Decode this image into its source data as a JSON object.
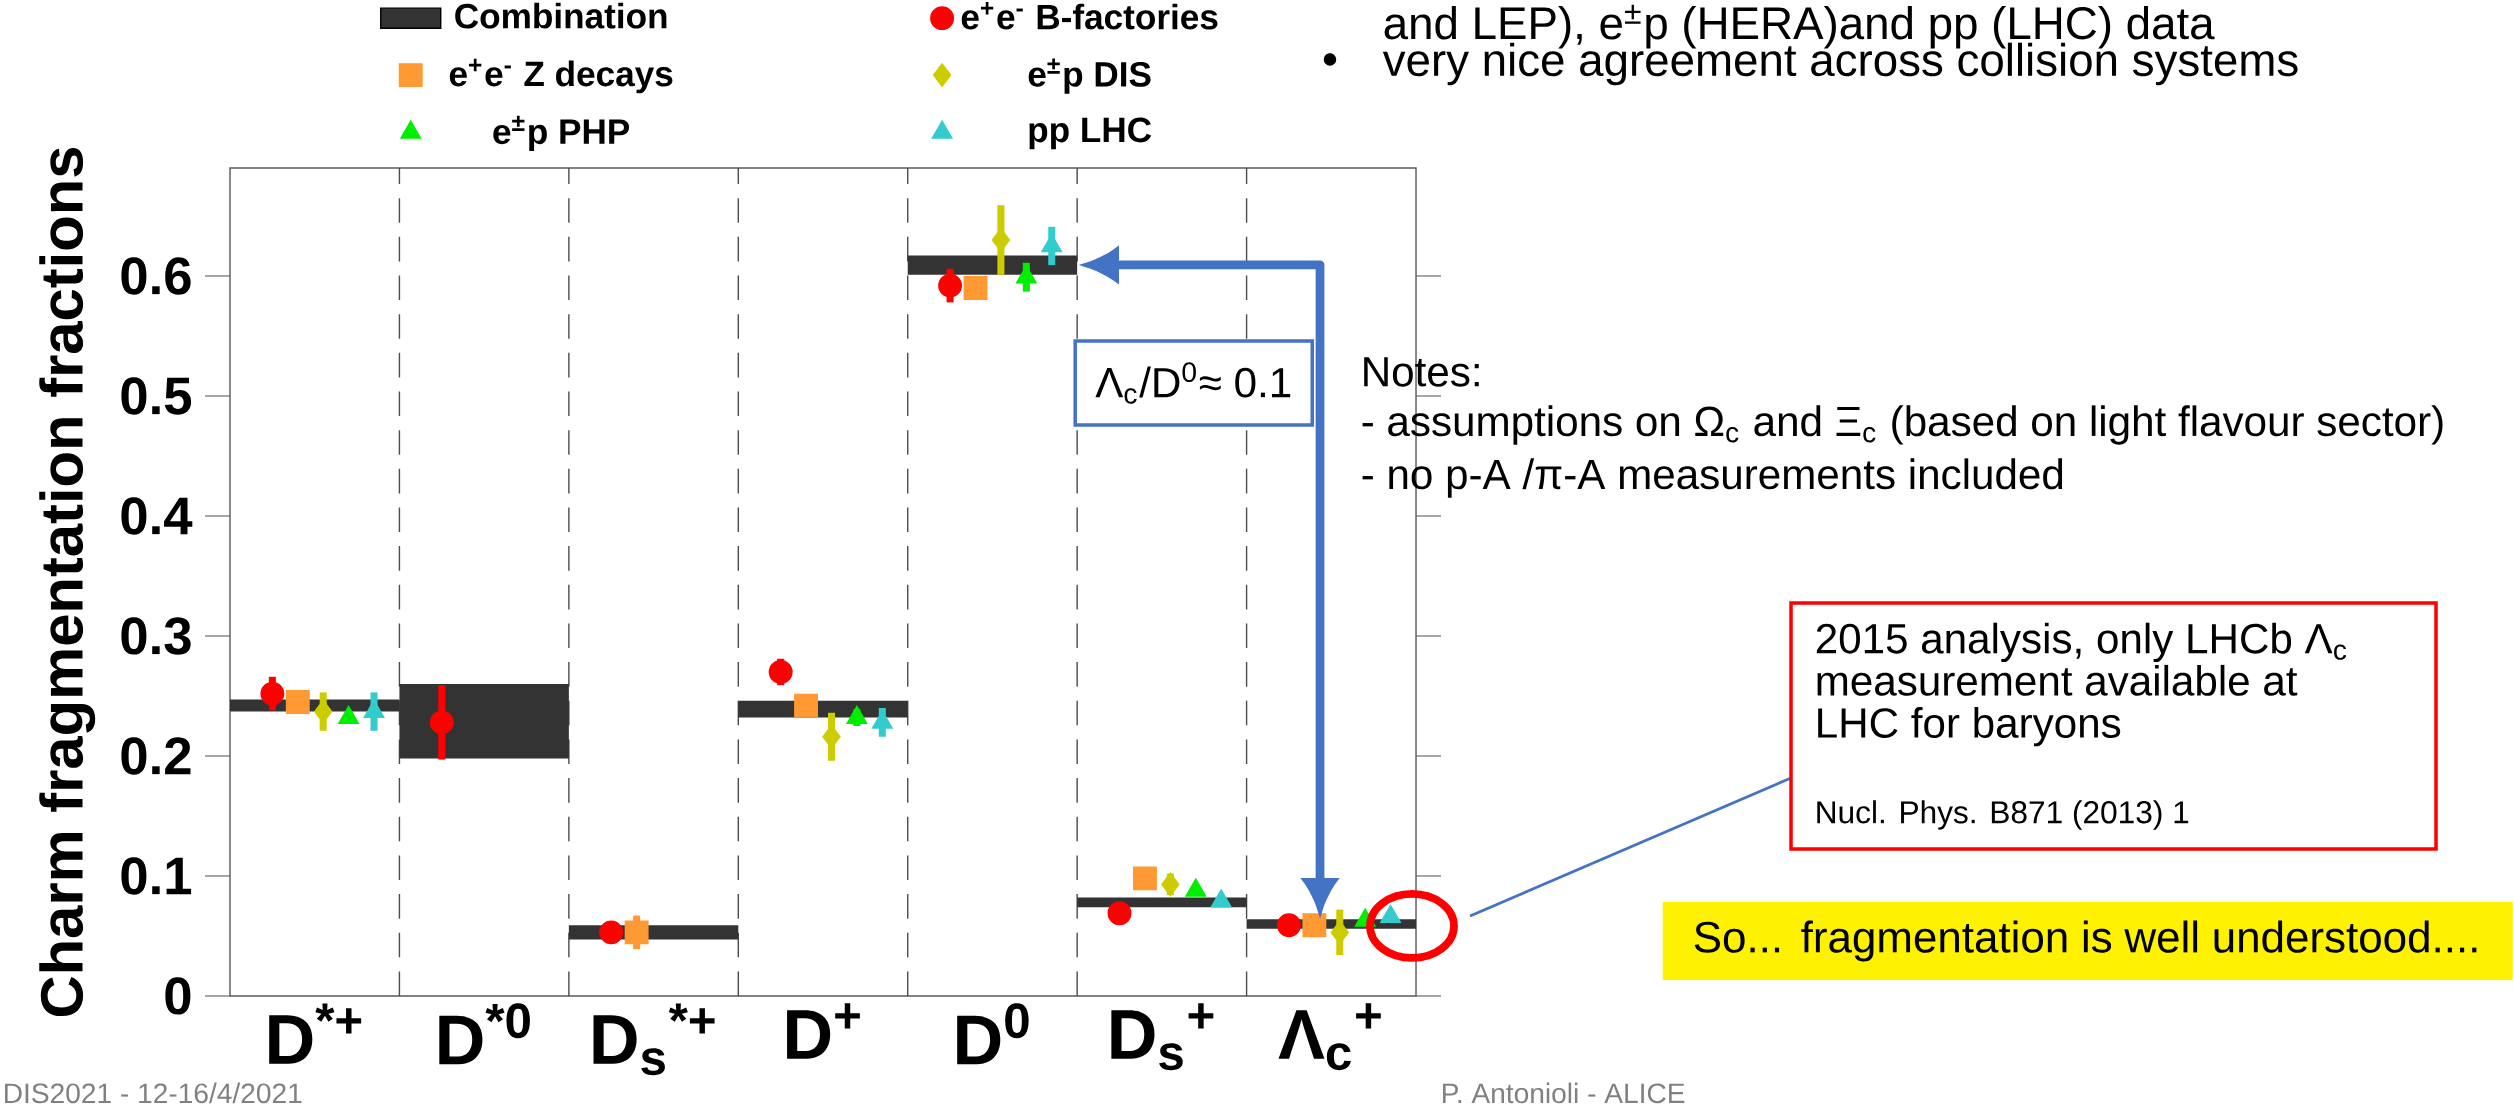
{
  "chart_data": {
    "type": "scatter",
    "ylabel": "Charm fragmentation fractions",
    "categories": [
      "D$^{*+}$",
      "D$^{*0}$",
      "D$_{s}$$^{*+}$",
      "D$^{+}$",
      "D$^{0}$",
      "D$_{s}$$^{+}$",
      "Λ$_{c}$$^{+}$"
    ],
    "ylim": [
      0,
      0.69
    ],
    "yticks": [
      0,
      0.1,
      0.2,
      0.3,
      0.4,
      0.5,
      0.6
    ],
    "legend": "top",
    "series": [
      {
        "name": "Combination",
        "type": "bar",
        "color": "#333333",
        "base": [
          0.237,
          0.198,
          0.047,
          0.232,
          0.601,
          0.074,
          0.056
        ],
        "values": [
          0.01,
          0.062,
          0.012,
          0.014,
          0.016,
          0.008,
          0.008
        ]
      },
      {
        "name": "e$^{+}$e$^{-}$ B-factories",
        "marker": "circle",
        "color": "#ff0000",
        "values": [
          0.252,
          0.228,
          0.053,
          0.27,
          0.592,
          0.069,
          0.059
        ],
        "errors": [
          0.014,
          0.031,
          null,
          0.011,
          0.014,
          null,
          null
        ]
      },
      {
        "name": "e$^{+}$e$^{-}$ Z decays",
        "marker": "square",
        "color": "#ff9933",
        "values": [
          0.245,
          null,
          0.053,
          0.242,
          0.59,
          0.098,
          0.059
        ],
        "errors": [
          0.005,
          null,
          0.014,
          0.006,
          0.01,
          null,
          null
        ]
      },
      {
        "name": "e$^{±}$p DIS",
        "marker": "diamond",
        "color": "#cccc00",
        "values": [
          0.237,
          null,
          null,
          0.216,
          0.63,
          0.093,
          0.053
        ],
        "errors": [
          0.016,
          null,
          null,
          0.02,
          0.029,
          0.009,
          0.019
        ]
      },
      {
        "name": "e$^{±}$p PHP",
        "marker": "triangle",
        "color": "#00ee00",
        "values": [
          0.232,
          null,
          null,
          0.232,
          0.599,
          0.088,
          0.063
        ],
        "errors": [
          null,
          null,
          null,
          0.007,
          0.012,
          null,
          null
        ]
      },
      {
        "name": "pp LHC",
        "marker": "triangle",
        "color": "#33cccc",
        "values": [
          0.237,
          null,
          null,
          0.228,
          0.625,
          0.079,
          0.066
        ],
        "errors": [
          0.016,
          null,
          null,
          0.012,
          0.016,
          null,
          null
        ]
      }
    ],
    "annotations": [
      "and LEP), e$^{±}$p (HERA)and pp (LHC) data",
      "very nice agreement across collision systems",
      "Notes:",
      "- assumptions on Ω$_{c}$ and Ξ$_{c}$ (based on light flavour sector)",
      "- no p-A /π-A measurements included",
      "Λ$_{c}$/D$^{0}$≈ 0.1",
      "2015 analysis, only LHCb Λ$_{c}$ measurement available at LHC for baryons",
      "Nucl. Phys. B871 (2013) 1",
      "So... fragmentation is well understood....",
      "DIS2021 - 12-16/4/2021",
      "P. Antonioli - ALICE",
      "•"
    ]
  }
}
